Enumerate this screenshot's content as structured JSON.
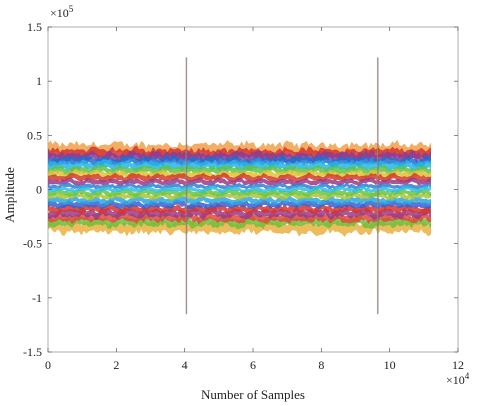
{
  "chart_data": {
    "type": "area",
    "title": "",
    "xlabel": "Number of Samples",
    "ylabel": "Amplitude",
    "x_exponent_label": "×10",
    "x_exponent_power": "4",
    "y_exponent_label": "×10",
    "y_exponent_power": "5",
    "xlim": [
      0,
      12
    ],
    "ylim": [
      -1.5,
      1.5
    ],
    "x_ticks": [
      0,
      2,
      4,
      6,
      8,
      10,
      12
    ],
    "y_ticks": [
      1.5,
      1,
      0.5,
      0,
      -0.5,
      -1,
      -1.5
    ],
    "x_tick_labels": [
      "0",
      "2",
      "4",
      "6",
      "8",
      "10",
      "12"
    ],
    "y_tick_labels": [
      "1.5",
      "1",
      "0.5",
      "0",
      "-0.5",
      "-1",
      "-1.5"
    ],
    "grid": false,
    "legend": "none",
    "signal_x_range": [
      0,
      11.2
    ],
    "spikes": [
      {
        "x": 4.05,
        "y_max": 1.22,
        "y_min": -1.15
      },
      {
        "x": 9.65,
        "y_max": 1.22,
        "y_min": -1.15
      }
    ],
    "series": [
      {
        "center": 0.37,
        "spread": 0.06,
        "color": "#f0a04a"
      },
      {
        "center": 0.33,
        "spread": 0.05,
        "color": "#d8342c"
      },
      {
        "center": 0.3,
        "spread": 0.045,
        "color": "#8a3c9a"
      },
      {
        "center": 0.26,
        "spread": 0.04,
        "color": "#1e6fd0"
      },
      {
        "center": 0.22,
        "spread": 0.04,
        "color": "#26b5e6"
      },
      {
        "center": 0.18,
        "spread": 0.035,
        "color": "#5fc24a"
      },
      {
        "center": 0.14,
        "spread": 0.03,
        "color": "#e0c236"
      },
      {
        "center": 0.11,
        "spread": 0.03,
        "color": "#d23c2a"
      },
      {
        "center": 0.07,
        "spread": 0.025,
        "color": "#9a3a8a"
      },
      {
        "center": 0.03,
        "spread": 0.02,
        "color": "#2f7fd8"
      },
      {
        "center": 0.0,
        "spread": 0.02,
        "color": "#2fc0e0"
      },
      {
        "center": -0.03,
        "spread": 0.025,
        "color": "#6bc43e"
      },
      {
        "center": -0.06,
        "spread": 0.025,
        "color": "#a9c53a"
      },
      {
        "center": -0.1,
        "spread": 0.03,
        "color": "#2aa6e0"
      },
      {
        "center": -0.14,
        "spread": 0.03,
        "color": "#3a5fd0"
      },
      {
        "center": -0.18,
        "spread": 0.035,
        "color": "#d8342c"
      },
      {
        "center": -0.22,
        "spread": 0.04,
        "color": "#9a3a8a"
      },
      {
        "center": -0.26,
        "spread": 0.04,
        "color": "#e04a3a"
      },
      {
        "center": -0.3,
        "spread": 0.045,
        "color": "#6bbf3a"
      },
      {
        "center": -0.35,
        "spread": 0.06,
        "color": "#eab040"
      }
    ]
  }
}
